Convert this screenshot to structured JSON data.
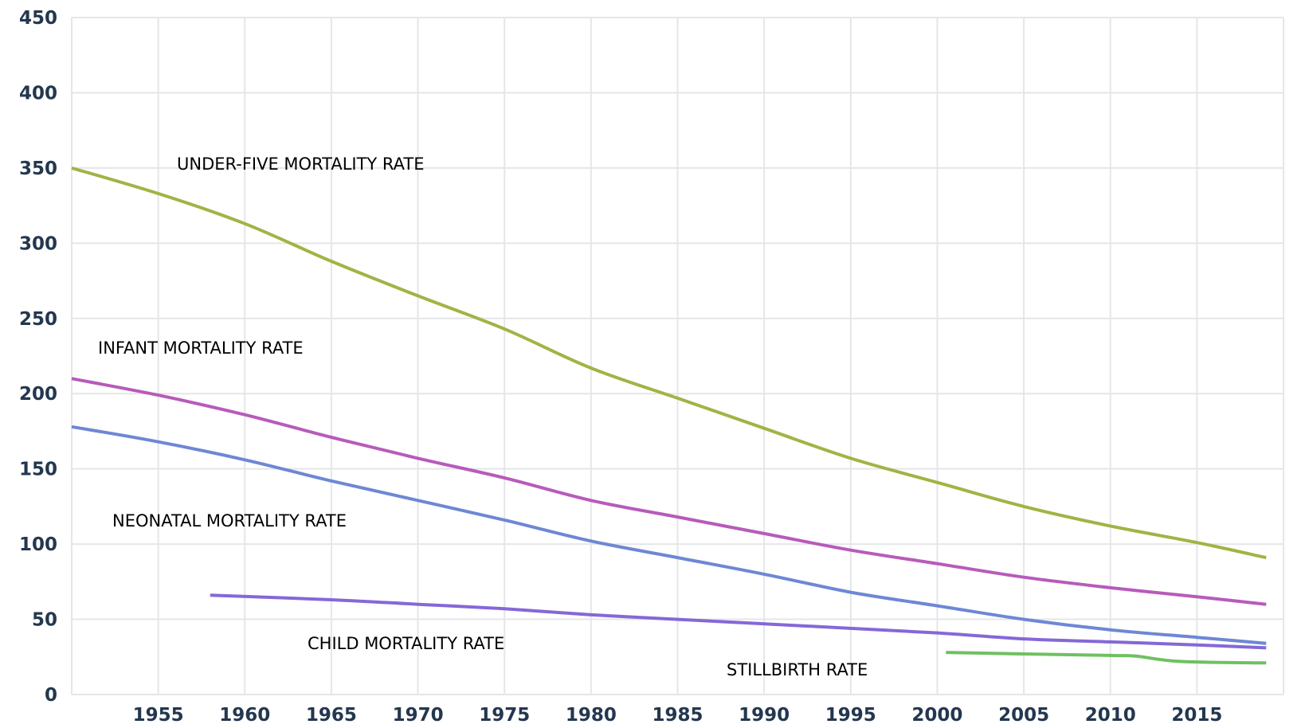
{
  "chart_data": {
    "type": "line",
    "title": "",
    "xlabel": "",
    "ylabel": "",
    "xlim": [
      1950,
      2020
    ],
    "ylim": [
      0,
      450
    ],
    "grid": true,
    "y_ticks": [
      "0",
      "50",
      "100",
      "150",
      "200",
      "250",
      "300",
      "350",
      "400",
      "450"
    ],
    "x_ticks": [
      "1955",
      "1960",
      "1965",
      "1970",
      "1975",
      "1980",
      "1985",
      "1990",
      "1995",
      "2000",
      "2005",
      "2010",
      "2015"
    ],
    "series": [
      {
        "name": "UNDER-FIVE MORTALITY RATE",
        "color": "#a4b245",
        "x": [
          1950,
          1955,
          1960,
          1965,
          1970,
          1975,
          1980,
          1985,
          1990,
          1995,
          2000,
          2005,
          2010,
          2015,
          2019
        ],
        "values": [
          350,
          333,
          313,
          288,
          265,
          243,
          217,
          197,
          177,
          157,
          141,
          125,
          112,
          101,
          91
        ]
      },
      {
        "name": "INFANT MORTALITY RATE",
        "color": "#b75bba",
        "x": [
          1950,
          1955,
          1960,
          1965,
          1970,
          1975,
          1980,
          1985,
          1990,
          1995,
          2000,
          2005,
          2010,
          2015,
          2019
        ],
        "values": [
          210,
          199,
          186,
          171,
          157,
          144,
          129,
          118,
          107,
          96,
          87,
          78,
          71,
          65,
          60
        ]
      },
      {
        "name": "NEONATAL MORTALITY RATE",
        "color": "#6e87d5",
        "x": [
          1950,
          1955,
          1960,
          1965,
          1970,
          1975,
          1980,
          1985,
          1990,
          1995,
          2000,
          2005,
          2010,
          2015,
          2019
        ],
        "values": [
          178,
          168,
          156,
          142,
          129,
          116,
          102,
          91,
          80,
          68,
          59,
          50,
          43,
          38,
          34
        ]
      },
      {
        "name": "CHILD MORTALITY RATE",
        "color": "#8468d8",
        "x": [
          1958,
          1965,
          1970,
          1975,
          1980,
          1985,
          1990,
          1995,
          2000,
          2005,
          2010,
          2015,
          2019
        ],
        "values": [
          66,
          63,
          60,
          57,
          53,
          50,
          47,
          44,
          41,
          37,
          35,
          33,
          31
        ]
      },
      {
        "name": "STILLBIRTH RATE",
        "color": "#6fc062",
        "x": [
          2000.5,
          2005,
          2010,
          2011.5,
          2014,
          2019
        ],
        "values": [
          28,
          27,
          26,
          25.5,
          22,
          21
        ]
      }
    ]
  }
}
